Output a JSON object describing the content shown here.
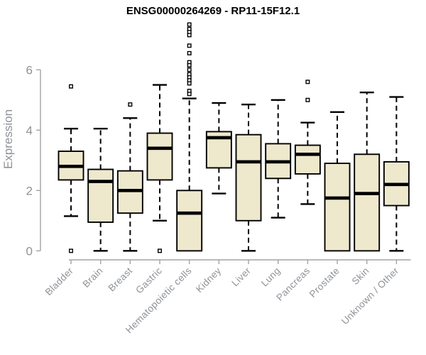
{
  "chart_data": {
    "type": "boxplot",
    "title": "ENSG00000264269 - RP11-15F12.1",
    "ylabel": "Expression",
    "xlabel": "",
    "yticks": [
      0,
      2,
      4,
      6
    ],
    "ylim": [
      0,
      7.6
    ],
    "grid": false,
    "legend": null,
    "categories": [
      "Bladder",
      "Brain",
      "Breast",
      "Gastric",
      "Hematopoietic cells",
      "Kidney",
      "Liver",
      "Lung",
      "Pancreas",
      "Prostate",
      "Skin",
      "Unknown / Other"
    ],
    "boxes": [
      {
        "category": "Bladder",
        "whisker_low": 1.15,
        "q1": 2.35,
        "median": 2.8,
        "q3": 3.3,
        "whisker_high": 4.05,
        "outliers": [
          5.45,
          0.0
        ]
      },
      {
        "category": "Brain",
        "whisker_low": 0.0,
        "q1": 0.95,
        "median": 2.3,
        "q3": 2.7,
        "whisker_high": 4.05,
        "outliers": []
      },
      {
        "category": "Breast",
        "whisker_low": 0.0,
        "q1": 1.25,
        "median": 2.0,
        "q3": 2.65,
        "whisker_high": 4.4,
        "outliers": [
          4.85
        ]
      },
      {
        "category": "Gastric",
        "whisker_low": 1.0,
        "q1": 2.35,
        "median": 3.4,
        "q3": 3.9,
        "whisker_high": 5.5,
        "outliers": [
          0.0
        ]
      },
      {
        "category": "Hematopoietic cells",
        "whisker_low": 0.0,
        "q1": 0.0,
        "median": 1.25,
        "q3": 2.0,
        "whisker_high": 5.05,
        "outliers": [
          7.5,
          7.35,
          7.25,
          7.15,
          6.8,
          6.55,
          6.25,
          6.15,
          6.0,
          5.85,
          5.75,
          5.65,
          5.55,
          5.3,
          5.2
        ]
      },
      {
        "category": "Kidney",
        "whisker_low": 1.9,
        "q1": 2.75,
        "median": 3.75,
        "q3": 3.95,
        "whisker_high": 4.9,
        "outliers": []
      },
      {
        "category": "Liver",
        "whisker_low": 0.0,
        "q1": 1.0,
        "median": 2.95,
        "q3": 3.85,
        "whisker_high": 4.85,
        "outliers": []
      },
      {
        "category": "Lung",
        "whisker_low": 1.1,
        "q1": 2.4,
        "median": 2.95,
        "q3": 3.55,
        "whisker_high": 5.0,
        "outliers": []
      },
      {
        "category": "Pancreas",
        "whisker_low": 1.55,
        "q1": 2.55,
        "median": 3.2,
        "q3": 3.5,
        "whisker_high": 4.25,
        "outliers": [
          5.6,
          5.0
        ]
      },
      {
        "category": "Prostate",
        "whisker_low": 0.0,
        "q1": 0.0,
        "median": 1.75,
        "q3": 2.9,
        "whisker_high": 4.6,
        "outliers": []
      },
      {
        "category": "Skin",
        "whisker_low": 0.0,
        "q1": 0.0,
        "median": 1.9,
        "q3": 3.2,
        "whisker_high": 5.25,
        "outliers": []
      },
      {
        "category": "Unknown / Other",
        "whisker_low": 0.0,
        "q1": 1.5,
        "median": 2.2,
        "q3": 2.95,
        "whisker_high": 5.1,
        "outliers": []
      }
    ],
    "colors": {
      "box_fill": "#EEE8CD",
      "box_stroke": "#000000",
      "median": "#000000",
      "whisker": "#000000",
      "outlier_stroke": "#000000",
      "outlier_fill": "#FFFFFF",
      "axis_line": "#A3A3A3",
      "tick_label": "#8E9297",
      "title": "#000000",
      "background": "#FFFFFF"
    }
  }
}
